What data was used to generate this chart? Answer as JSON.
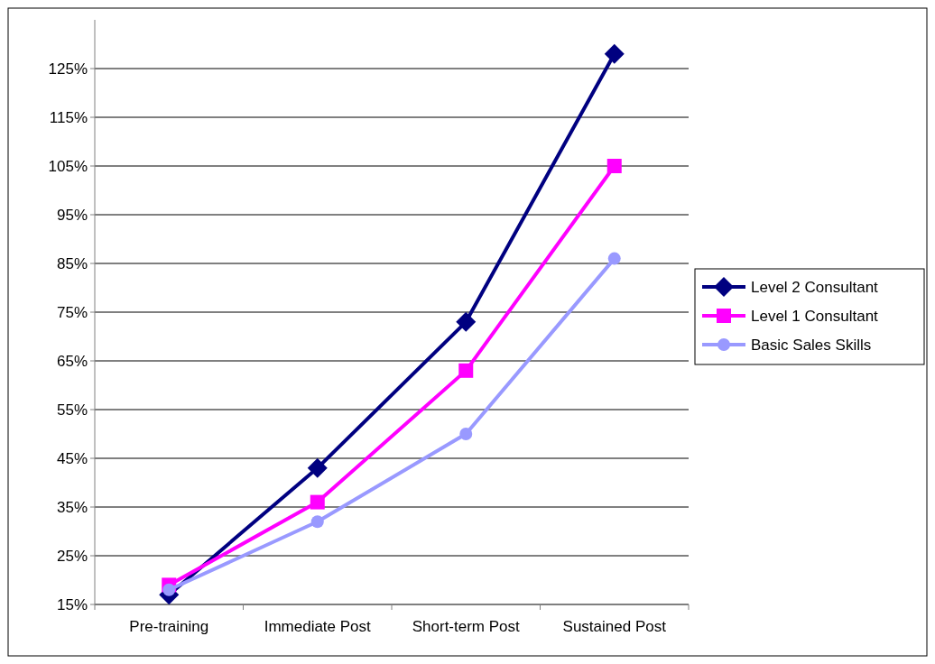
{
  "chart_data": {
    "type": "line",
    "categories": [
      "Pre-training",
      "Immediate Post",
      "Short-term Post",
      "Sustained Post"
    ],
    "series": [
      {
        "name": "Level 2 Consultant",
        "color": "#000080",
        "marker": "diamond",
        "values": [
          17,
          43,
          73,
          128
        ]
      },
      {
        "name": "Level 1 Consultant",
        "color": "#ff00ff",
        "marker": "square",
        "values": [
          19,
          36,
          63,
          105
        ]
      },
      {
        "name": "Basic Sales Skills",
        "color": "#9999ff",
        "marker": "circle",
        "values": [
          18,
          32,
          50,
          86
        ]
      }
    ],
    "ylim": [
      15,
      135
    ],
    "yticks": [
      {
        "value": 15,
        "label": "15%"
      },
      {
        "value": 25,
        "label": "25%"
      },
      {
        "value": 35,
        "label": "35%"
      },
      {
        "value": 45,
        "label": "45%"
      },
      {
        "value": 55,
        "label": "55%"
      },
      {
        "value": 65,
        "label": "65%"
      },
      {
        "value": 75,
        "label": "75%"
      },
      {
        "value": 85,
        "label": "85%"
      },
      {
        "value": 95,
        "label": "95%"
      },
      {
        "value": 105,
        "label": "105%"
      },
      {
        "value": 115,
        "label": "115%"
      },
      {
        "value": 125,
        "label": "125%"
      }
    ],
    "grid": "y",
    "legend": "right",
    "line_style": "solid"
  }
}
